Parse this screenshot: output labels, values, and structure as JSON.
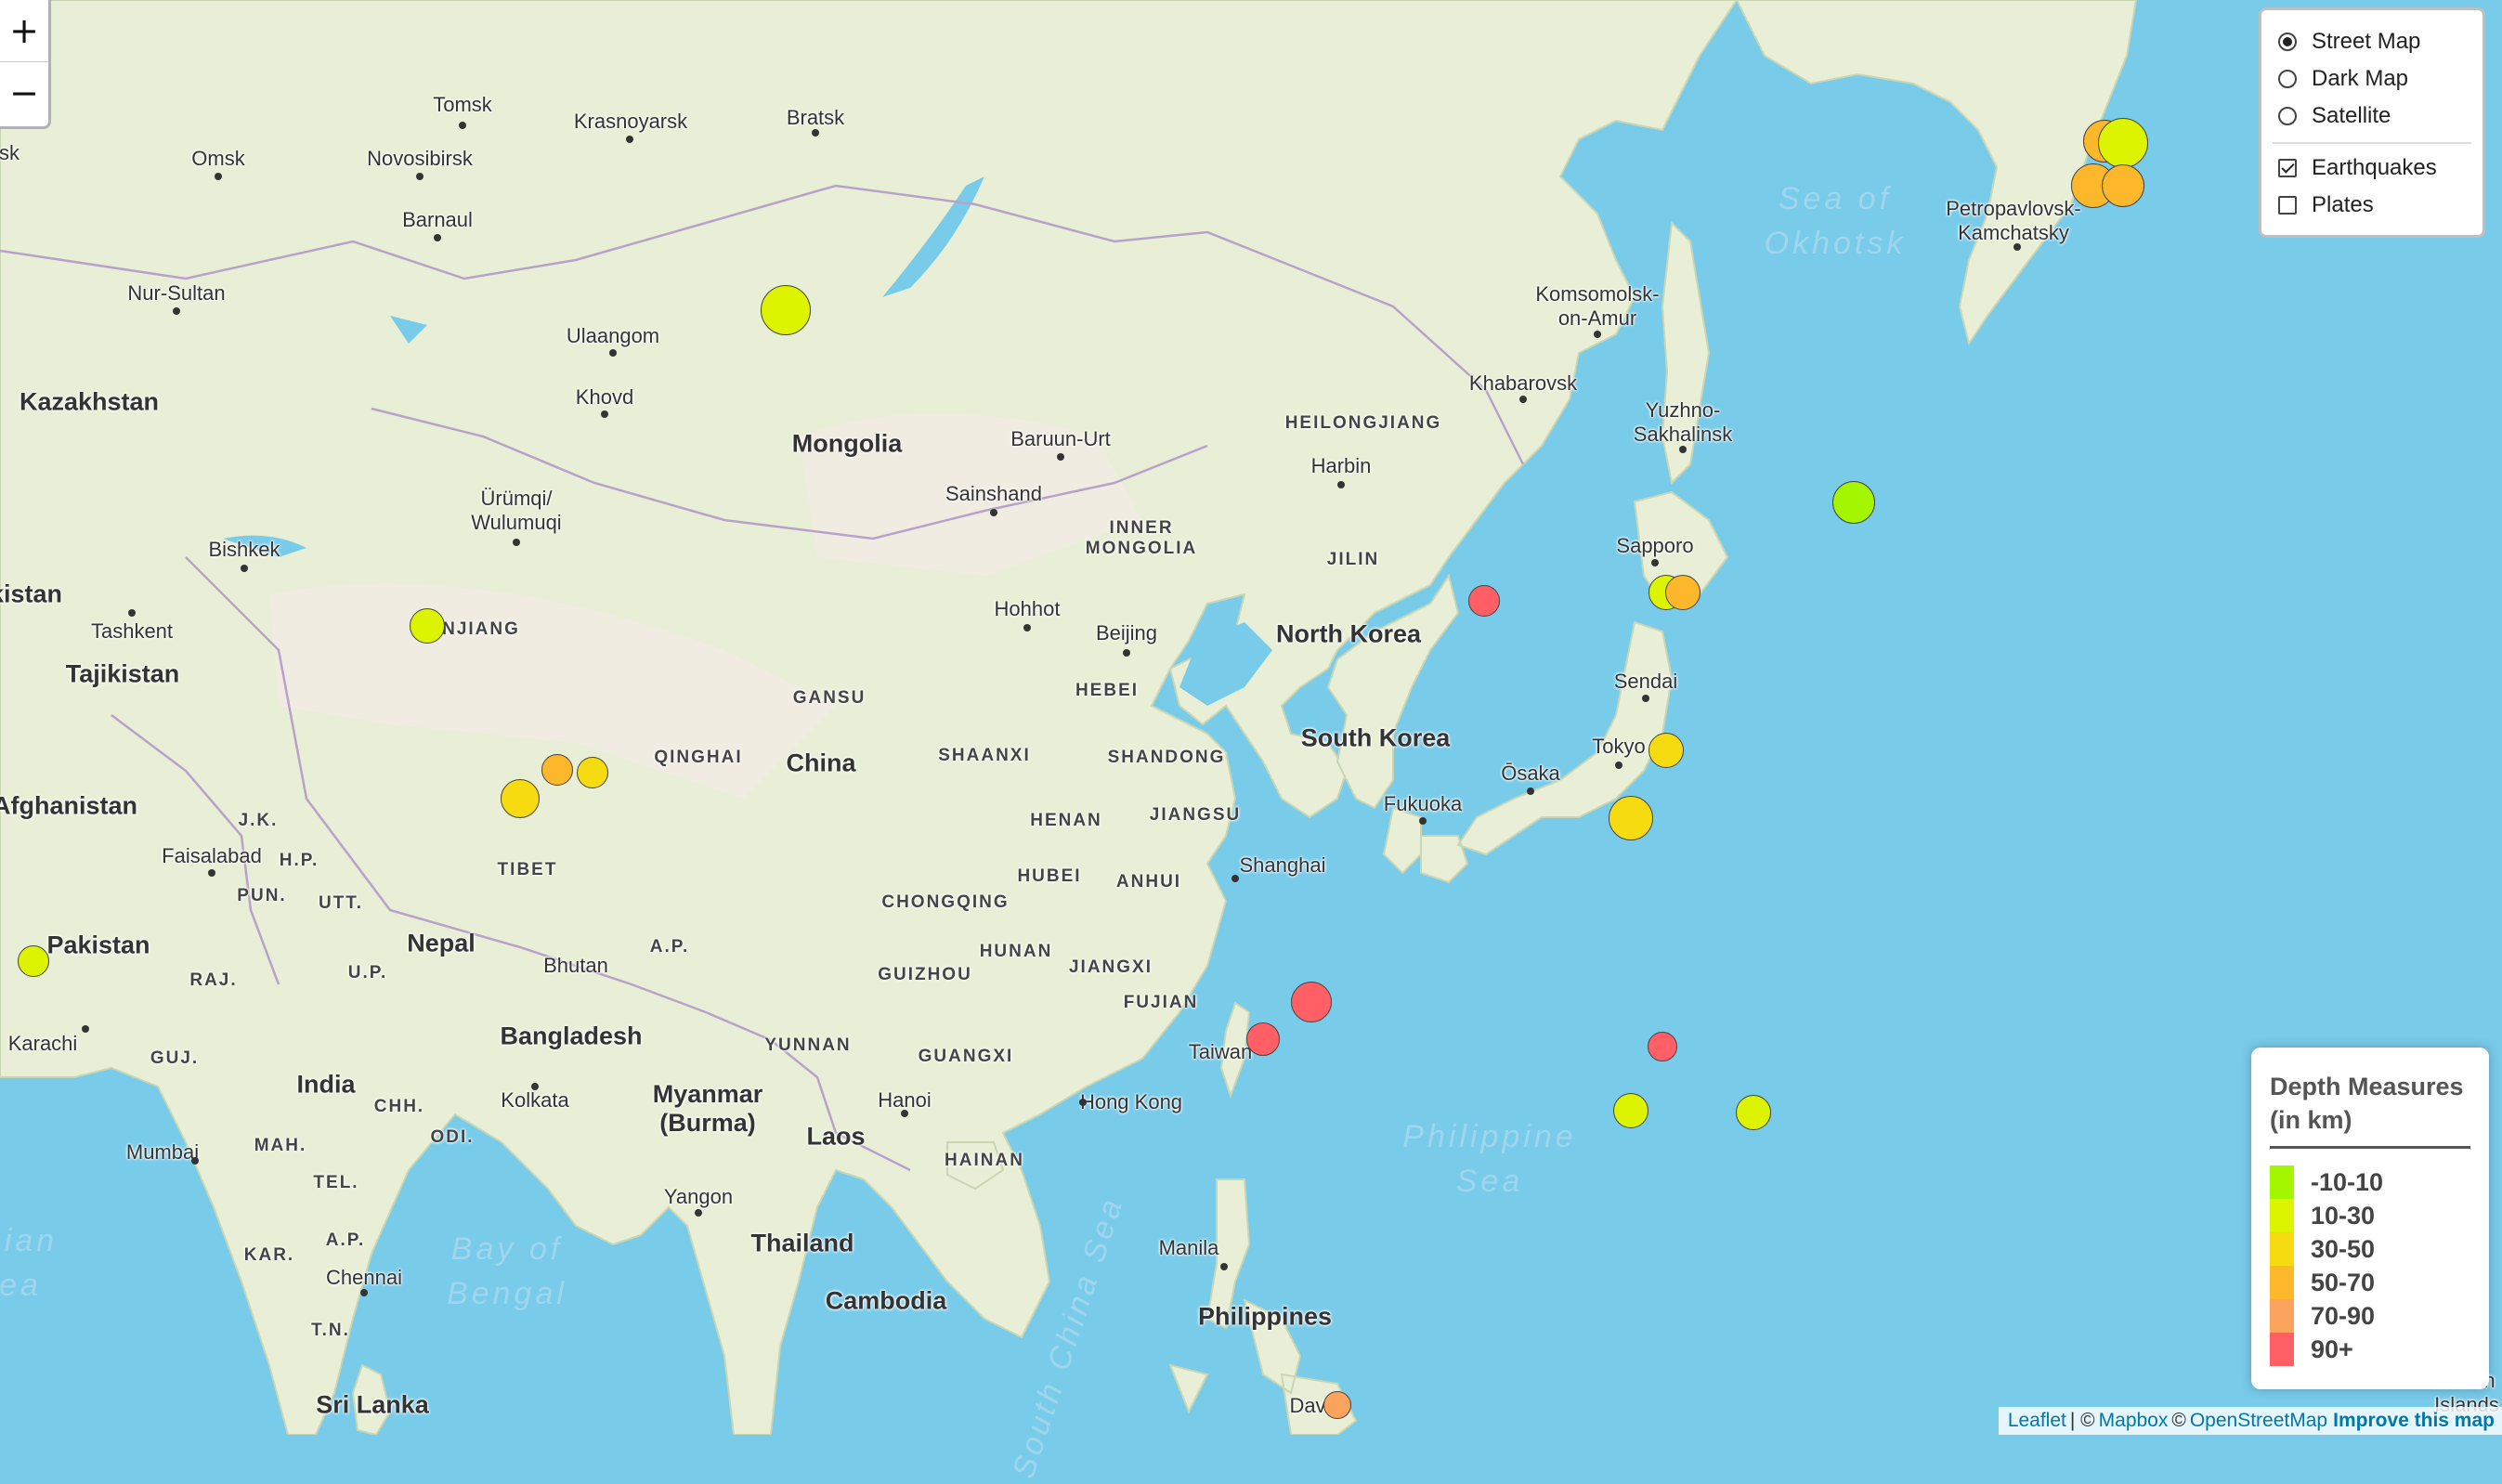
{
  "zoom": {
    "in_label": "+",
    "out_label": "−"
  },
  "layer_control": {
    "base_layers": [
      {
        "label": "Street Map",
        "selected": true
      },
      {
        "label": "Dark Map",
        "selected": false
      },
      {
        "label": "Satellite",
        "selected": false
      }
    ],
    "overlays": [
      {
        "label": "Earthquakes",
        "checked": true
      },
      {
        "label": "Plates",
        "checked": false
      }
    ]
  },
  "legend": {
    "title_line1": "Depth Measures",
    "title_line2": "(in km)",
    "items": [
      {
        "label": "-10-10",
        "color": "#a3f600"
      },
      {
        "label": "10-30",
        "color": "#dcf400"
      },
      {
        "label": "30-50",
        "color": "#f7db11"
      },
      {
        "label": "50-70",
        "color": "#fdb72a"
      },
      {
        "label": "70-90",
        "color": "#fca35d"
      },
      {
        "label": "90+",
        "color": "#ff5f65"
      }
    ]
  },
  "attribution": {
    "leaflet": "Leaflet",
    "sep1": "| ©",
    "mapbox": "Mapbox",
    "sep2": "©",
    "osm": "OpenStreetMap",
    "improve": "Improve this map"
  },
  "labels": {
    "kazakhstan": "Kazakhstan",
    "mongolia": "Mongolia",
    "china": "China",
    "tajikistan": "Tajikistan",
    "kistan": "kistan",
    "afghanistan": "Afghanistan",
    "pakistan": "Pakistan",
    "nepal": "Nepal",
    "india": "India",
    "bangladesh": "Bangladesh",
    "myanmar": "Myanmar\n(Burma)",
    "laos": "Laos",
    "thailand": "Thailand",
    "cambodia": "Cambodia",
    "philippines": "Philippines",
    "north_korea": "North Korea",
    "south_korea": "South Korea",
    "sri_lanka": "Sri Lanka",
    "taiwan": "Taiwan",
    "bhutan": "Bhutan",
    "tomsk": "Tomsk",
    "krasnoyarsk": "Krasnoyarsk",
    "bratsk": "Bratsk",
    "omsk": "Omsk",
    "novosibirsk": "Novosibirsk",
    "barnaul": "Barnaul",
    "nur_sultan": "Nur-Sultan",
    "sk": "sk",
    "ulaangom": "Ulaangom",
    "khovd": "Khovd",
    "urumqi": "Ürümqi/\nWulumuqi",
    "bishkek": "Bishkek",
    "tashkent": "Tashkent",
    "baruun_urt": "Baruun-Urt",
    "sainshand": "Sainshand",
    "hohhot": "Hohhot",
    "beijing": "Beijing",
    "harbin": "Harbin",
    "khabarovsk": "Khabarovsk",
    "komsomolsk": "Komsomolsk-\non-Amur",
    "yuzhno": "Yuzhno-\nSakhalinsk",
    "sapporo": "Sapporo",
    "sendai": "Sendai",
    "tokyo": "Tokyo",
    "osaka": "Ōsaka",
    "fukuoka": "Fukuoka",
    "shanghai": "Shanghai",
    "hong_kong": "Hong Kong",
    "hanoi": "Hanoi",
    "yangon": "Yangon",
    "kolkata": "Kolkata",
    "mumbai": "Mumbai",
    "chennai": "Chennai",
    "karachi": "Karachi",
    "faisalabad": "Faisalabad",
    "manila": "Manila",
    "petropavlovsk": "Petropavlovsk-\nKamchatsky",
    "marsh": "Marsh\nIslands",
    "dav": "Dav",
    "heilongjiang": "HEILONGJIANG",
    "inner_mongolia": "INNER\nMONGOLIA",
    "jilin": "JILIN",
    "njiang": "NJIANG",
    "gansu": "GANSU",
    "qinghai": "QINGHAI",
    "hebei": "HEBEI",
    "shaanxi": "SHAANXI",
    "shandong": "SHANDONG",
    "henan": "HENAN",
    "jiangsu": "JIANGSU",
    "hubei": "HUBEI",
    "anhui": "ANHUI",
    "chongqing": "CHONGQING",
    "hunan": "HUNAN",
    "jiangxi": "JIANGXI",
    "guizhou": "GUIZHOU",
    "fujian": "FUJIAN",
    "yunnan": "YUNNAN",
    "guangxi": "GUANGXI",
    "hainan": "HAINAN",
    "tibet": "TIBET",
    "jk": "J.K.",
    "hp": "H.P.",
    "pun": "PUN.",
    "utt": "UTT.",
    "up": "U.P.",
    "ap_n": "A.P.",
    "raj": "RAJ.",
    "guj": "GUJ.",
    "mah": "MAH.",
    "chh": "CHH.",
    "odi": "ODI.",
    "tel": "TEL.",
    "kar": "KAR.",
    "ap_s": "A.P.",
    "tn": "T.N.",
    "sea_okhotsk": "Sea of\nOkhotsk",
    "philippine_sea": "Philippine\nSea",
    "bay_bengal": "Bay of\nBengal",
    "south_china_sea": "South China Sea",
    "arabian": "bian\nea"
  },
  "earthquakes": [
    {
      "depth": "10-30"
    },
    {
      "depth": "10-30"
    },
    {
      "depth": "30-50"
    },
    {
      "depth": "30-50"
    },
    {
      "depth": "50-70"
    },
    {
      "depth": "50-70"
    },
    {
      "depth": "50-70"
    },
    {
      "depth": "10-30"
    },
    {
      "depth": "-10-10"
    },
    {
      "depth": "10-30"
    },
    {
      "depth": "50-70"
    },
    {
      "depth": "10-30"
    },
    {
      "depth": "10-30"
    },
    {
      "depth": "90+"
    },
    {
      "depth": "90+"
    },
    {
      "depth": "90+"
    },
    {
      "depth": "90+"
    },
    {
      "depth": "10-30"
    },
    {
      "depth": "70-90"
    },
    {
      "depth": "30-50"
    },
    {
      "depth": "30-50"
    },
    {
      "depth": "50-70"
    }
  ]
}
